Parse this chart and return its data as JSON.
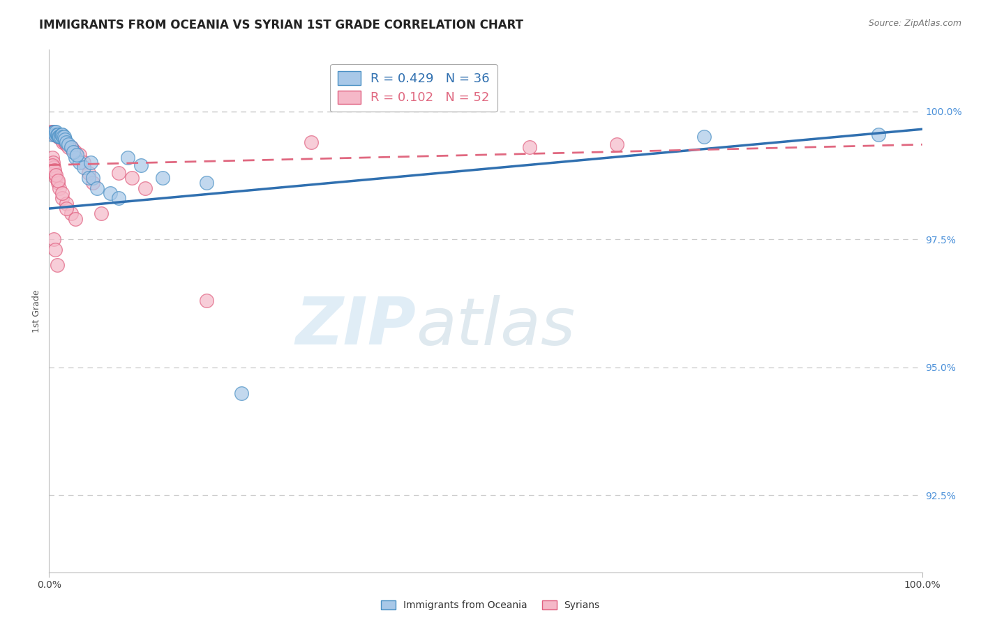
{
  "title": "IMMIGRANTS FROM OCEANIA VS SYRIAN 1ST GRADE CORRELATION CHART",
  "source_text": "Source: ZipAtlas.com",
  "ylabel": "1st Grade",
  "xlim": [
    0.0,
    100.0
  ],
  "ylim": [
    91.0,
    101.2
  ],
  "yticks": [
    92.5,
    95.0,
    97.5,
    100.0
  ],
  "ytick_labels": [
    "92.5%",
    "95.0%",
    "97.5%",
    "100.0%"
  ],
  "xticks": [
    0.0,
    100.0
  ],
  "xtick_labels": [
    "0.0%",
    "100.0%"
  ],
  "watermark_zip": "ZIP",
  "watermark_atlas": "atlas",
  "blue_scatter_x": [
    0.4,
    0.5,
    0.6,
    0.7,
    0.8,
    0.9,
    1.0,
    1.1,
    1.2,
    1.3,
    1.4,
    1.5,
    1.6,
    1.7,
    1.8,
    2.0,
    2.2,
    2.5,
    3.0,
    3.5,
    4.0,
    4.5,
    5.0,
    5.5,
    7.0,
    8.0,
    9.0,
    10.5,
    2.8,
    3.2,
    4.8,
    13.0,
    18.0,
    75.0,
    95.0,
    22.0
  ],
  "blue_scatter_y": [
    99.55,
    99.6,
    99.6,
    99.55,
    99.6,
    99.55,
    99.55,
    99.5,
    99.5,
    99.5,
    99.55,
    99.55,
    99.5,
    99.5,
    99.45,
    99.4,
    99.35,
    99.3,
    99.1,
    99.0,
    98.9,
    98.7,
    98.7,
    98.5,
    98.4,
    98.3,
    99.1,
    98.95,
    99.2,
    99.15,
    99.0,
    98.7,
    98.6,
    99.5,
    99.55,
    94.5
  ],
  "pink_scatter_x": [
    0.3,
    0.4,
    0.5,
    0.6,
    0.7,
    0.8,
    0.9,
    1.0,
    1.1,
    1.2,
    1.3,
    1.4,
    1.5,
    1.6,
    1.8,
    2.0,
    2.2,
    2.5,
    2.8,
    3.0,
    3.5,
    4.0,
    0.35,
    0.45,
    0.55,
    0.65,
    0.75,
    1.0,
    1.2,
    1.5,
    2.0,
    2.5,
    3.0,
    0.4,
    0.6,
    0.8,
    1.0,
    1.5,
    2.0,
    0.5,
    0.7,
    0.9,
    4.5,
    5.0,
    6.0,
    30.0,
    65.0,
    55.0,
    8.0,
    9.5,
    11.0,
    18.0
  ],
  "pink_scatter_y": [
    99.6,
    99.6,
    99.6,
    99.55,
    99.55,
    99.55,
    99.55,
    99.5,
    99.5,
    99.5,
    99.5,
    99.45,
    99.45,
    99.4,
    99.4,
    99.35,
    99.3,
    99.3,
    99.25,
    99.2,
    99.15,
    99.0,
    99.1,
    99.0,
    98.9,
    98.8,
    98.7,
    98.6,
    98.5,
    98.3,
    98.2,
    98.0,
    97.9,
    98.95,
    98.85,
    98.75,
    98.65,
    98.4,
    98.1,
    97.5,
    97.3,
    97.0,
    98.8,
    98.6,
    98.0,
    99.4,
    99.35,
    99.3,
    98.8,
    98.7,
    98.5,
    96.3
  ],
  "blue_color": "#a8c8e8",
  "pink_color": "#f5b8c8",
  "blue_edge_color": "#4a90c4",
  "pink_edge_color": "#e06080",
  "blue_line_color": "#3070b0",
  "pink_line_color": "#e06880",
  "grid_color": "#cccccc",
  "background_color": "#ffffff",
  "title_fontsize": 12,
  "axis_label_fontsize": 9,
  "tick_fontsize": 10,
  "legend_fontsize": 13,
  "marker_size": 200,
  "blue_line_x0": 0.0,
  "blue_line_y0": 98.1,
  "blue_line_x1": 100.0,
  "blue_line_y1": 99.65,
  "pink_line_x0": 0.0,
  "pink_line_y0": 98.95,
  "pink_line_x1": 100.0,
  "pink_line_y1": 99.35,
  "legend_r_blue": "R = 0.429",
  "legend_n_blue": "N = 36",
  "legend_r_pink": "R = 0.102",
  "legend_n_pink": "N = 52",
  "legend_label_blue": "Immigrants from Oceania",
  "legend_label_pink": "Syrians"
}
